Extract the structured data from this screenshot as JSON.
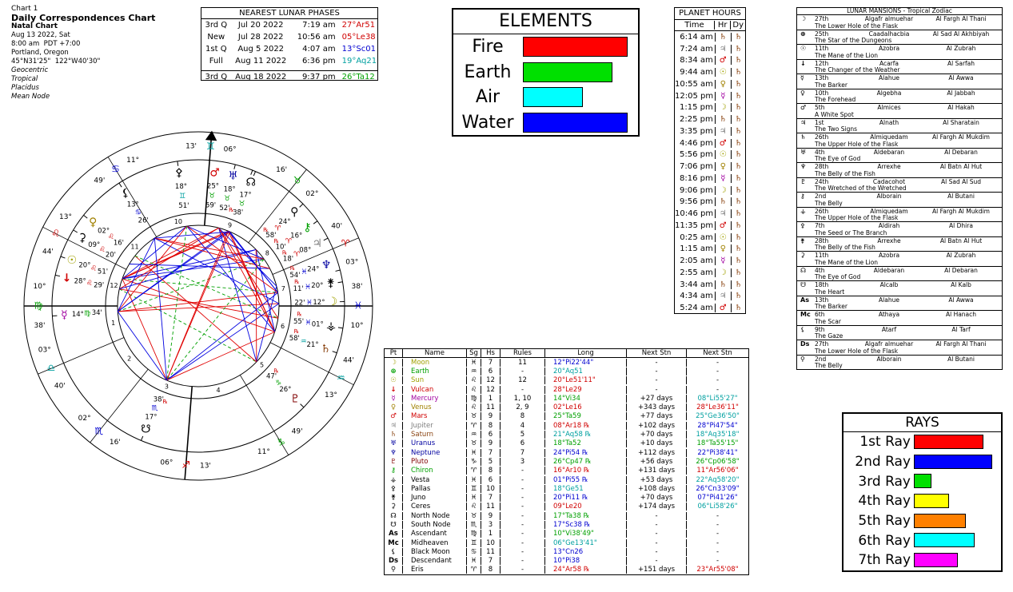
{
  "header": {
    "chart_label": "Chart 1",
    "title": "Daily Correspondences Chart",
    "subtitle": "Natal Chart",
    "details": [
      "Aug 13 2022, Sat",
      "8:00 am  PDT +7:00",
      "Portland, Oregon",
      "45°N31'25\"  122°W40'30\""
    ],
    "settings": [
      "Geocentric",
      "Tropical",
      "Placidus",
      "Mean Node"
    ]
  },
  "lunar_phases": {
    "title": "NEAREST LUNAR PHASES",
    "rows": [
      [
        "3rd Q",
        "Jul 20 2022",
        "7:19 am",
        "27°Ar51"
      ],
      [
        "New",
        "Jul 28 2022",
        "10:56 am",
        "05°Le38"
      ],
      [
        "1st Q",
        "Aug 5 2022",
        "4:07 am",
        "13°Sc01"
      ],
      [
        "Full",
        "Aug 11 2022",
        "6:36 pm",
        "19°Aq21"
      ],
      [
        "3rd Q",
        "Aug 18 2022",
        "9:37 pm",
        "26°Ta12"
      ]
    ],
    "colors": [
      "#d00000",
      "#d00000",
      "#0000d0",
      "#00a0a0",
      "#00a000"
    ]
  },
  "elements": {
    "title": "ELEMENTS",
    "items": [
      {
        "name": "Fire",
        "value": 7,
        "color": "#ff0000"
      },
      {
        "name": "Earth",
        "value": 6,
        "color": "#00e000"
      },
      {
        "name": "Air",
        "value": 4,
        "color": "#00ffff"
      },
      {
        "name": "Water",
        "value": 7,
        "color": "#0000ff"
      }
    ]
  },
  "planet_hours": {
    "title": "PLANET HOURS",
    "headers": [
      "Time",
      "Hr",
      "Dy"
    ],
    "rows": [
      [
        "6:14 am",
        "♄",
        "♄"
      ],
      [
        "7:24 am",
        "♃",
        "♄"
      ],
      [
        "8:34 am",
        "♂",
        "♄"
      ],
      [
        "9:44 am",
        "☉",
        "♄"
      ],
      [
        "10:55 am",
        "♀",
        "♄"
      ],
      [
        "12:05 pm",
        "☿",
        "♄"
      ],
      [
        "1:15 pm",
        "☽",
        "♄"
      ],
      [
        "2:25 pm",
        "♄",
        "♄"
      ],
      [
        "3:35 pm",
        "♃",
        "♄"
      ],
      [
        "4:46 pm",
        "♂",
        "♄"
      ],
      [
        "5:56 pm",
        "☉",
        "♄"
      ],
      [
        "7:06 pm",
        "♀",
        "♄"
      ],
      [
        "8:16 pm",
        "☿",
        "♄"
      ],
      [
        "9:06 pm",
        "☽",
        "♄"
      ],
      [
        "9:56 pm",
        "♄",
        "♄"
      ],
      [
        "10:46 pm",
        "♃",
        "♄"
      ],
      [
        "11:35 pm",
        "♂",
        "♄"
      ],
      [
        "0:25 am",
        "☉",
        "♄"
      ],
      [
        "1:15 am",
        "♀",
        "♄"
      ],
      [
        "2:05 am",
        "☿",
        "♄"
      ],
      [
        "2:55 am",
        "☽",
        "♄"
      ],
      [
        "3:44 am",
        "♄",
        "♄"
      ],
      [
        "4:34 am",
        "♃",
        "♄"
      ],
      [
        "5:24 am",
        "♂",
        "♄"
      ]
    ],
    "glyph_colors": {
      "♄": "#8b4513",
      "♃": "#808080",
      "♂": "#d00000",
      "☉": "#a0a000",
      "♀": "#a08000",
      "☿": "#a000a0",
      "☽": "#a0a000"
    }
  },
  "lunar_mansions": {
    "title": "LUNAR MANSIONS - Tropical Zodiac",
    "rows": [
      [
        "☽",
        "27th",
        "Algafr almuehar",
        "Al Fargh Al Thani",
        "The Lower Hole of the Flask"
      ],
      [
        "⊕",
        "25th",
        "Caadalhacbia",
        "Al Sad Al Akhbiyah",
        "The Star of the Dungeons"
      ],
      [
        "☉",
        "11th",
        "Azobra",
        "Al Zubrah",
        "The Mane of the Lion"
      ],
      [
        "↓",
        "12th",
        "Acarfa",
        "Al Sarfah",
        "The Changer of the Weather"
      ],
      [
        "☿",
        "13th",
        "Alahue",
        "Al Awwa",
        "The Barker"
      ],
      [
        "♀",
        "10th",
        "Algebha",
        "Al Jabbah",
        "The Forehead"
      ],
      [
        "♂",
        "5th",
        "Almices",
        "Al Hakah",
        "A White Spot"
      ],
      [
        "♃",
        "1st",
        "Alnath",
        "Al Sharatain",
        "The Two Signs"
      ],
      [
        "♄",
        "26th",
        "Almiquedam",
        "Al Fargh Al Mukdim",
        "The Upper Hole of the Flask"
      ],
      [
        "♅",
        "4th",
        "Aldebaran",
        "Al Debaran",
        "The Eye of God"
      ],
      [
        "♆",
        "28th",
        "Arrexhe",
        "Al Batn Al Hut",
        "The Belly of the Fish"
      ],
      [
        "♇",
        "24th",
        "Cadacohot",
        "Al Sad Al Sud",
        "The Wretched of the Wretched"
      ],
      [
        "⚷",
        "2nd",
        "Alborain",
        "Al Butani",
        "The Belly"
      ],
      [
        "⚶",
        "26th",
        "Almiquedam",
        "Al Fargh Al Mukdim",
        "The Upper Hole of the Flask"
      ],
      [
        "⚴",
        "7th",
        "Aldirah",
        "Al Dhira",
        "The Seed or The Branch"
      ],
      [
        "⚵",
        "28th",
        "Arrexhe",
        "Al Batn Al Hut",
        "The Belly of the Fish"
      ],
      [
        "⚳",
        "11th",
        "Azobra",
        "Al Zubrah",
        "The Mane of the Lion"
      ],
      [
        "☊",
        "4th",
        "Aldebaran",
        "Al Debaran",
        "The Eye of God"
      ],
      [
        "☋",
        "18th",
        "Alcalb",
        "Al Kalb",
        "The Heart"
      ],
      [
        "As",
        "13th",
        "Alahue",
        "Al Awwa",
        "The Barker"
      ],
      [
        "Mc",
        "6th",
        "Athaya",
        "Al Hanach",
        "The Scar"
      ],
      [
        "⚸",
        "9th",
        "Atarf",
        "Al Tarf",
        "The Gaze"
      ],
      [
        "Ds",
        "27th",
        "Algafr almuehar",
        "Al Fargh Al Thani",
        "The Lower Hole of the Flask"
      ],
      [
        "⚲",
        "2nd",
        "Alborain",
        "Al Butani",
        "The Belly"
      ]
    ]
  },
  "rays": {
    "title": "RAYS",
    "items": [
      {
        "name": "1st Ray",
        "value": 8,
        "color": "#ff0000"
      },
      {
        "name": "2nd Ray",
        "value": 9,
        "color": "#0000ff"
      },
      {
        "name": "3rd Ray",
        "value": 2,
        "color": "#00e000"
      },
      {
        "name": "4th Ray",
        "value": 4,
        "color": "#ffff00"
      },
      {
        "name": "5th Ray",
        "value": 6,
        "color": "#ff8000"
      },
      {
        "name": "6th Ray",
        "value": 7,
        "color": "#00ffff"
      },
      {
        "name": "7th Ray",
        "value": 5,
        "color": "#ff00ff"
      }
    ]
  },
  "planets": {
    "headers": [
      "Pt",
      "Name",
      "Sg",
      "Hs",
      "Rules",
      "Long",
      "Next Stn",
      "Next Stn"
    ],
    "rows": [
      [
        "☽",
        "Moon",
        "♓",
        "7",
        "11",
        "12°Pi22'44\"",
        "-",
        "-"
      ],
      [
        "⊕",
        "Earth",
        "♒",
        "6",
        "-",
        "20°Aq51",
        "-",
        "-"
      ],
      [
        "☉",
        "Sun",
        "♌",
        "12",
        "12",
        "20°Le51'11\"",
        "-",
        "-"
      ],
      [
        "↓",
        "Vulcan",
        "♌",
        "12",
        "-",
        "28°Le29",
        "-",
        "-"
      ],
      [
        "☿",
        "Mercury",
        "♍",
        "1",
        "1, 10",
        "14°Vi34",
        "+27 days",
        "08°Li55'27\""
      ],
      [
        "♀",
        "Venus",
        "♌",
        "11",
        "2, 9",
        "02°Le16",
        "+343 days",
        "28°Le36'11\""
      ],
      [
        "♂",
        "Mars",
        "♉",
        "9",
        "8",
        "25°Ta59",
        "+77 days",
        "25°Ge36'50\""
      ],
      [
        "♃",
        "Jupiter",
        "♈",
        "8",
        "4",
        "08°Ar18 ℞",
        "+102 days",
        "28°Pi47'54\""
      ],
      [
        "♄",
        "Saturn",
        "♒",
        "6",
        "5",
        "21°Aq58 ℞",
        "+70 days",
        "18°Aq35'18\""
      ],
      [
        "♅",
        "Uranus",
        "♉",
        "9",
        "6",
        "18°Ta52",
        "+10 days",
        "18°Ta55'15\""
      ],
      [
        "♆",
        "Neptune",
        "♓",
        "7",
        "7",
        "24°Pi54 ℞",
        "+112 days",
        "22°Pi38'41\""
      ],
      [
        "♇",
        "Pluto",
        "♑",
        "5",
        "3",
        "26°Cp47 ℞",
        "+56 days",
        "26°Cp06'58\""
      ],
      [
        "⚷",
        "Chiron",
        "♈",
        "8",
        "-",
        "16°Ar10 ℞",
        "+131 days",
        "11°Ar56'06\""
      ],
      [
        "⚶",
        "Vesta",
        "♓",
        "6",
        "-",
        "01°Pi55 ℞",
        "+53 days",
        "22°Aq58'20\""
      ],
      [
        "⚴",
        "Pallas",
        "♊",
        "10",
        "-",
        "18°Ge51",
        "+108 days",
        "26°Cn33'09\""
      ],
      [
        "⚵",
        "Juno",
        "♓",
        "7",
        "-",
        "20°Pi11 ℞",
        "+70 days",
        "07°Pi41'26\""
      ],
      [
        "⚳",
        "Ceres",
        "♌",
        "11",
        "-",
        "09°Le20",
        "+174 days",
        "06°Li58'26\""
      ],
      [
        "☊",
        "North Node",
        "♉",
        "9",
        "-",
        "17°Ta38 ℞",
        "-",
        "-"
      ],
      [
        "☋",
        "South Node",
        "♏",
        "3",
        "-",
        "17°Sc38 ℞",
        "-",
        "-"
      ],
      [
        "As",
        "Ascendant",
        "♍",
        "1",
        "-",
        "10°Vi38'49\"",
        "-",
        "-"
      ],
      [
        "Mc",
        "Midheaven",
        "♊",
        "10",
        "-",
        "06°Ge13'41\"",
        "-",
        "-"
      ],
      [
        "⚸",
        "Black Moon",
        "♋",
        "11",
        "-",
        "13°Cn26",
        "-",
        "-"
      ],
      [
        "Ds",
        "Descendant",
        "♓",
        "7",
        "-",
        "10°Pi38",
        "-",
        "-"
      ],
      [
        "⚲",
        "Eris",
        "♈",
        "8",
        "-",
        "24°Ar58 ℞",
        "+151 days",
        "23°Ar55'08\""
      ]
    ],
    "name_colors": [
      "#a0a000",
      "#00a000",
      "#a0a000",
      "#d00000",
      "#a000a0",
      "#a08000",
      "#d00000",
      "#808080",
      "#8b4513",
      "#0000a0",
      "#0000a0",
      "#800000",
      "#00a000",
      "#000000",
      "#000000",
      "#000000",
      "#000000",
      "#000000",
      "#000000",
      "#000000",
      "#000000",
      "#000000",
      "#000000",
      "#000000"
    ],
    "long_colors": [
      "#0000d0",
      "#00a0a0",
      "#d00000",
      "#d00000",
      "#00a000",
      "#d00000",
      "#00a000",
      "#d00000",
      "#00a0a0",
      "#00a000",
      "#0000d0",
      "#00a000",
      "#d00000",
      "#0000d0",
      "#00a0a0",
      "#0000d0",
      "#d00000",
      "#00a000",
      "#0000d0",
      "#00a000",
      "#00a0a0",
      "#0000d0",
      "#0000d0",
      "#d00000"
    ],
    "next_colors": [
      "#000000",
      "#000000",
      "#000000",
      "#000000",
      "#00a0a0",
      "#d00000",
      "#00a0a0",
      "#0000d0",
      "#00a0a0",
      "#00a000",
      "#0000d0",
      "#00a000",
      "#d00000",
      "#00a0a0",
      "#0000d0",
      "#0000d0",
      "#00a0a0",
      "#000000",
      "#000000",
      "#000000",
      "#000000",
      "#000000",
      "#000000",
      "#d00000"
    ]
  },
  "wheel": {
    "house_numbers": [
      "1",
      "2",
      "3",
      "4",
      "5",
      "6",
      "7",
      "8",
      "9",
      "10",
      "11",
      "12"
    ],
    "cusps": [
      {
        "deg": "10°",
        "sign": "♍",
        "min": "38'",
        "lon": 160.65,
        "color": "#00a000"
      },
      {
        "deg": "03°",
        "sign": "♎",
        "min": "40'",
        "lon": 183.67,
        "color": "#00a0a0"
      },
      {
        "deg": "02°",
        "sign": "♏",
        "min": "16'",
        "lon": 212.27,
        "color": "#0000d0"
      },
      {
        "deg": "06°",
        "sign": "♐",
        "min": "13'",
        "lon": 246.22,
        "color": "#d00000"
      },
      {
        "deg": "11°",
        "sign": "♑",
        "min": "49'",
        "lon": 281.82,
        "color": "#00a000"
      },
      {
        "deg": "13°",
        "sign": "♒",
        "min": "44'",
        "lon": 313.73,
        "color": "#00a0a0"
      },
      {
        "deg": "10°",
        "sign": "♓",
        "min": "38'",
        "lon": 340.65,
        "color": "#0000d0"
      },
      {
        "deg": "03°",
        "sign": "♈",
        "min": "40'",
        "lon": 3.67,
        "color": "#d00000"
      },
      {
        "deg": "02°",
        "sign": "♉",
        "min": "16'",
        "lon": 32.27,
        "color": "#00a000"
      },
      {
        "deg": "06°",
        "sign": "♊",
        "min": "13'",
        "lon": 66.22,
        "color": "#00a0a0"
      },
      {
        "deg": "11°",
        "sign": "♋",
        "min": "49'",
        "lon": 101.82,
        "color": "#0000d0"
      },
      {
        "deg": "13°",
        "sign": "♌",
        "min": "44'",
        "lon": 133.73,
        "color": "#d00000"
      }
    ],
    "points": [
      {
        "glyph": "☽",
        "deg": "12°",
        "sign": "♓",
        "min": "22'",
        "lon": 342.37,
        "color": "#a0a000",
        "sign_color": "#0000d0"
      },
      {
        "glyph": "☉",
        "deg": "20°",
        "sign": "♌",
        "min": "51'",
        "lon": 140.85,
        "color": "#a0a000",
        "sign_color": "#d00000"
      },
      {
        "glyph": "↓",
        "deg": "28°",
        "sign": "♌",
        "min": "29'",
        "lon": 148.48,
        "color": "#d00000",
        "sign_color": "#d00000"
      },
      {
        "glyph": "☿",
        "deg": "14°",
        "sign": "♍",
        "min": "34'",
        "lon": 164.57,
        "color": "#a000a0",
        "sign_color": "#00a000"
      },
      {
        "glyph": "♀",
        "deg": "02°",
        "sign": "♌",
        "min": "16'",
        "lon": 122.27,
        "color": "#a08000",
        "sign_color": "#d00000"
      },
      {
        "glyph": "♂",
        "deg": "25°",
        "sign": "♉",
        "min": "59'",
        "lon": 55.98,
        "color": "#d00000",
        "sign_color": "#00a000"
      },
      {
        "glyph": "♃",
        "deg": "08°",
        "sign": "♈",
        "min": "18'",
        "lon": 8.3,
        "color": "#808080",
        "sign_color": "#d00000",
        "retro": "℞"
      },
      {
        "glyph": "♄",
        "deg": "21°",
        "sign": "♒",
        "min": "58'",
        "lon": 321.97,
        "color": "#8b4513",
        "sign_color": "#00a0a0",
        "retro": "℞"
      },
      {
        "glyph": "♅",
        "deg": "18°",
        "sign": "♉",
        "min": "52'",
        "lon": 48.87,
        "color": "#0000a0",
        "sign_color": "#00a000"
      },
      {
        "glyph": "♆",
        "deg": "24°",
        "sign": "♓",
        "min": "54'",
        "lon": 354.9,
        "color": "#0000a0",
        "sign_color": "#0000d0",
        "retro": "℞"
      },
      {
        "glyph": "♇",
        "deg": "26°",
        "sign": "♑",
        "min": "47'",
        "lon": 296.78,
        "color": "#800000",
        "sign_color": "#00a000",
        "retro": "℞"
      },
      {
        "glyph": "⚷",
        "deg": "16°",
        "sign": "♈",
        "min": "10'",
        "lon": 16.17,
        "color": "#00a000",
        "sign_color": "#d00000",
        "retro": "℞"
      },
      {
        "glyph": "⚶",
        "deg": "01°",
        "sign": "♓",
        "min": "55'",
        "lon": 331.92,
        "color": "#000000",
        "sign_color": "#0000d0",
        "retro": "℞"
      },
      {
        "glyph": "⚴",
        "deg": "18°",
        "sign": "♊",
        "min": "51'",
        "lon": 78.85,
        "color": "#000000",
        "sign_color": "#00a0a0"
      },
      {
        "glyph": "⚵",
        "deg": "20°",
        "sign": "♓",
        "min": "11'",
        "lon": 350.18,
        "color": "#000000",
        "sign_color": "#0000d0",
        "retro": "℞"
      },
      {
        "glyph": "⚳",
        "deg": "09°",
        "sign": "♌",
        "min": "20'",
        "lon": 129.33,
        "color": "#000000",
        "sign_color": "#d00000"
      },
      {
        "glyph": "☊",
        "deg": "17°",
        "sign": "♉",
        "min": "38'",
        "lon": 47.63,
        "color": "#000000",
        "sign_color": "#00a000",
        "retro": "℞"
      },
      {
        "glyph": "☋",
        "deg": "17°",
        "sign": "♏",
        "min": "38'",
        "lon": 227.63,
        "color": "#000000",
        "sign_color": "#0000d0",
        "retro": "℞"
      },
      {
        "glyph": "⚸",
        "deg": "13°",
        "sign": "♋",
        "min": "26'",
        "lon": 103.43,
        "color": "#000000",
        "sign_color": "#0000d0"
      },
      {
        "glyph": "⚲",
        "deg": "24°",
        "sign": "♈",
        "min": "58'",
        "lon": 24.97,
        "color": "#000000",
        "sign_color": "#d00000",
        "retro": "℞"
      }
    ]
  }
}
